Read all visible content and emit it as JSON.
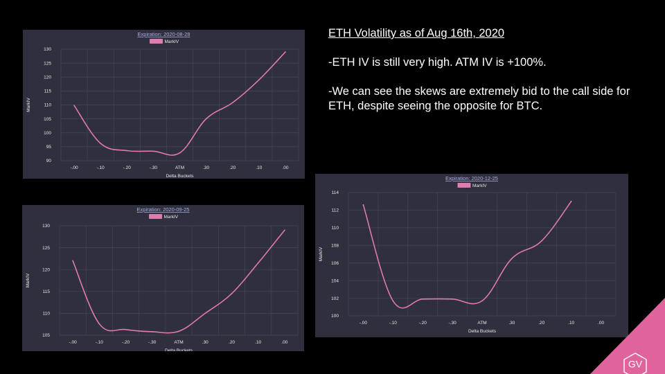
{
  "slide": {
    "headline": "ETH Volatility as of Aug 16th, 2020",
    "bullets": [
      "-ETH IV is still very high. ATM IV is +100%.",
      "-We can see the skews are extremely bid to the call side for ETH, despite seeing the opposite for BTC."
    ],
    "logo_text": "GV",
    "logo_color": "#e0649c"
  },
  "chart_data": [
    {
      "type": "line",
      "title": "Expiration: 2020-08-28",
      "xlabel": "Delta Buckets",
      "ylabel": "MarkIV",
      "categories": [
        "-.00",
        "-.10",
        "-.20",
        "-.30",
        "ATM",
        ".30",
        ".20",
        ".10",
        ".00"
      ],
      "series": [
        {
          "name": "MarkIV",
          "values": [
            109.8,
            96.2,
            93.6,
            93.4,
            92.8,
            105.0,
            110.8,
            119.0,
            129.0
          ]
        }
      ],
      "ylim": [
        90,
        130
      ],
      "yticks": [
        90,
        95,
        100,
        105,
        110,
        115,
        120,
        125,
        130
      ],
      "grid": true,
      "legend_position": "top-center",
      "line_color": "#e07ab0"
    },
    {
      "type": "line",
      "title": "Expiration: 2020-09-25",
      "xlabel": "Delta Buckets",
      "ylabel": "MarkIV",
      "categories": [
        "-.00",
        "-.10",
        "-.20",
        "-.30",
        "ATM",
        ".30",
        ".20",
        ".10",
        ".00"
      ],
      "series": [
        {
          "name": "MarkIV",
          "values": [
            122.0,
            107.6,
            106.3,
            105.8,
            105.9,
            110.0,
            114.5,
            121.5,
            129.0
          ]
        }
      ],
      "ylim": [
        105,
        130
      ],
      "yticks": [
        105,
        110,
        115,
        120,
        125,
        130
      ],
      "grid": true,
      "legend_position": "top-center",
      "line_color": "#e07ab0"
    },
    {
      "type": "line",
      "title": "Expiration: 2020-12-25",
      "xlabel": "Delta Buckets",
      "ylabel": "MarkIV",
      "categories": [
        "-.00",
        "-.10",
        "-.20",
        "-.30",
        "ATM",
        ".30",
        ".20",
        ".10",
        ".00"
      ],
      "series": [
        {
          "name": "MarkIV",
          "values": [
            112.6,
            101.7,
            101.9,
            101.9,
            101.7,
            106.5,
            108.5,
            113.0,
            null
          ]
        }
      ],
      "ylim": [
        100,
        114
      ],
      "yticks": [
        100,
        102,
        104,
        106,
        108,
        110,
        112,
        114
      ],
      "grid": true,
      "legend_position": "top-center",
      "line_color": "#e07ab0"
    }
  ]
}
